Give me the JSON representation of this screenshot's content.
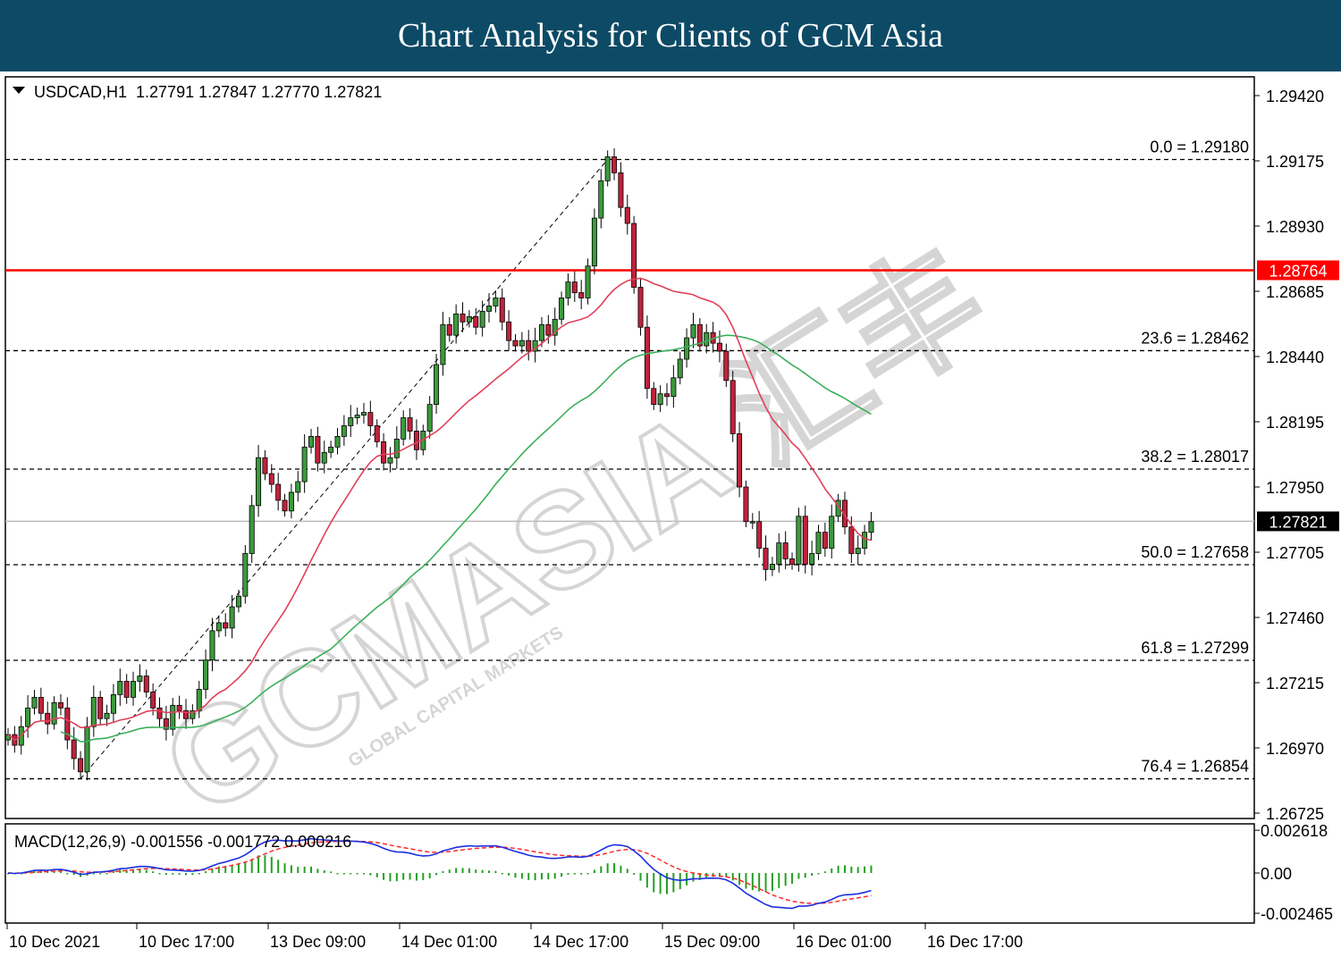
{
  "banner": {
    "title": "Chart Analysis for Clients of GCM Asia"
  },
  "watermark": {
    "text": "GCMASIA 汇丰",
    "subtext": "GLOBAL CAPITAL MARKETS"
  },
  "chart_data": {
    "type": "candlestick",
    "symbol_header": "USDCAD,H1  1.27791 1.27847 1.27770 1.27821",
    "ylim": [
      1.26725,
      1.2952
    ],
    "y_ticks": [
      1.2942,
      1.29175,
      1.2893,
      1.28685,
      1.2844,
      1.28195,
      1.2795,
      1.27705,
      1.2746,
      1.27215,
      1.2697,
      1.26725
    ],
    "y_tick_labels": [
      "1.29420",
      "1.29175",
      "1.28930",
      "1.28685",
      "1.28440",
      "1.28195",
      "1.27950",
      "1.27705",
      "1.27460",
      "1.27215",
      "1.26970",
      "1.26725"
    ],
    "x_tick_labels": [
      "10 Dec 2021",
      "10 Dec 17:00",
      "13 Dec 09:00",
      "14 Dec 01:00",
      "14 Dec 17:00",
      "15 Dec 09:00",
      "16 Dec 01:00",
      "16 Dec 17:00"
    ],
    "grid": false,
    "resistance_line": {
      "value": 1.28764,
      "label": "1.28764",
      "color": "#ff0000"
    },
    "current_price": {
      "value": 1.27821,
      "label": "1.27821"
    },
    "fibonacci": [
      {
        "label": "0.0 = 1.29180",
        "value": 1.2918
      },
      {
        "label": "23.6 = 1.28462",
        "value": 1.28462
      },
      {
        "label": "38.2 = 1.28017",
        "value": 1.28017
      },
      {
        "label": "50.0 = 1.27658",
        "value": 1.27658
      },
      {
        "label": "61.8 = 1.27299",
        "value": 1.27299
      },
      {
        "label": "76.4 = 1.26854",
        "value": 1.26854
      }
    ],
    "colors": {
      "bull": "#3c9a3c",
      "bear": "#c0223b",
      "ma_fast": "#e0405a",
      "ma_slow": "#3cb05a",
      "macd": "#1b2ee0",
      "signal": "#ff2a2a",
      "hist": "#23a023"
    },
    "closes": [
      1.2702,
      1.2698,
      1.2705,
      1.2712,
      1.2716,
      1.271,
      1.2706,
      1.2714,
      1.2712,
      1.27,
      1.2693,
      1.2688,
      1.2705,
      1.2716,
      1.2708,
      1.271,
      1.2717,
      1.2722,
      1.2716,
      1.2722,
      1.2724,
      1.2718,
      1.2712,
      1.2708,
      1.2704,
      1.2713,
      1.2711,
      1.2708,
      1.2711,
      1.2719,
      1.273,
      1.2741,
      1.2744,
      1.2742,
      1.275,
      1.2754,
      1.277,
      1.2788,
      1.2806,
      1.28,
      1.2796,
      1.279,
      1.2786,
      1.2793,
      1.2797,
      1.281,
      1.2814,
      1.2804,
      1.2808,
      1.281,
      1.2814,
      1.2818,
      1.2821,
      1.2822,
      1.2823,
      1.2818,
      1.2812,
      1.2804,
      1.2806,
      1.2813,
      1.2821,
      1.2816,
      1.2809,
      1.2816,
      1.2826,
      1.2841,
      1.2856,
      1.2852,
      1.286,
      1.2857,
      1.2859,
      1.2855,
      1.2861,
      1.2863,
      1.2866,
      1.2857,
      1.285,
      1.2848,
      1.285,
      1.2846,
      1.285,
      1.2856,
      1.2852,
      1.2858,
      1.2866,
      1.2872,
      1.2868,
      1.2866,
      1.2878,
      1.2896,
      1.291,
      1.2919,
      1.2913,
      1.29,
      1.2894,
      1.287,
      1.2855,
      1.2832,
      1.2826,
      1.283,
      1.2829,
      1.2836,
      1.2843,
      1.2851,
      1.2856,
      1.2848,
      1.2853,
      1.2849,
      1.2846,
      1.2835,
      1.2815,
      1.2795,
      1.2782,
      1.2782,
      1.2772,
      1.2764,
      1.2766,
      1.2774,
      1.2768,
      1.2766,
      1.2784,
      1.2766,
      1.277,
      1.2778,
      1.2772,
      1.2784,
      1.279,
      1.278,
      1.277,
      1.2772,
      1.2778,
      1.2782
    ],
    "ma_fast_end": 1.27835,
    "ma_slow_end": 1.2833,
    "macd": {
      "label": "MACD(12,26,9) -0.001556 -0.001772 0.000216",
      "ylim": [
        -0.0029,
        0.0029
      ],
      "y_ticks": [
        0.002618,
        0.0,
        -0.002465
      ],
      "y_tick_labels": [
        "0.002618",
        "0.00",
        "-0.002465"
      ]
    }
  }
}
